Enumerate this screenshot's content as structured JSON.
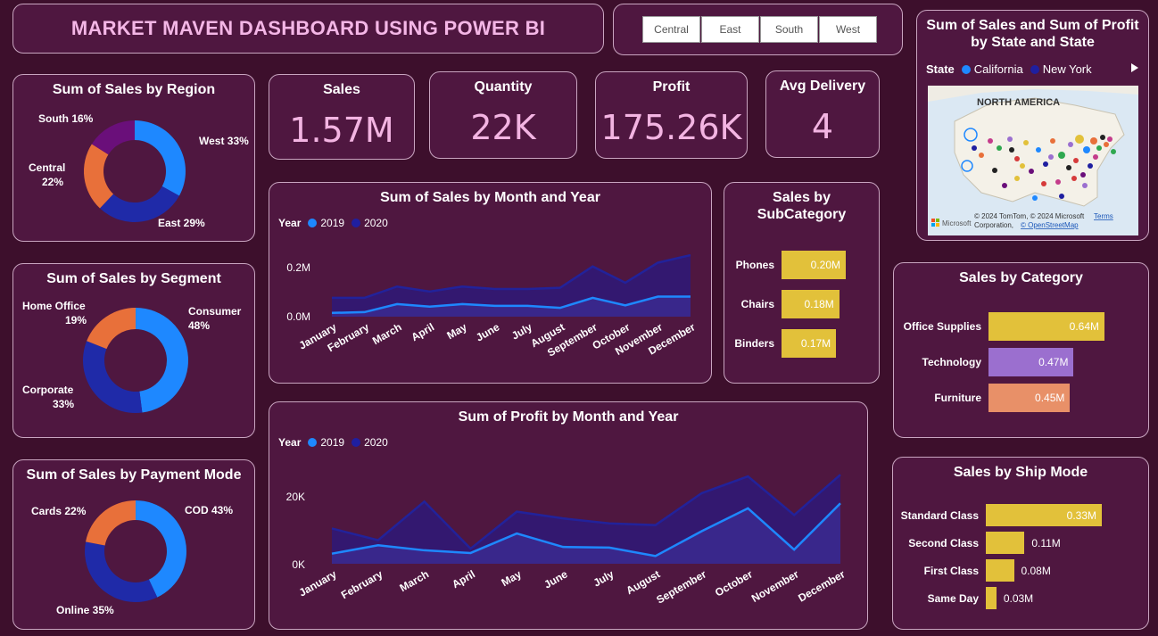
{
  "title": "MARKET MAVEN DASHBOARD USING POWER BI",
  "slicer": {
    "regions": [
      "Central",
      "East",
      "South",
      "West"
    ]
  },
  "kpis": [
    {
      "label": "Sales",
      "value": "1.57M"
    },
    {
      "label": "Quantity",
      "value": "22K"
    },
    {
      "label": "Profit",
      "value": "175.26K"
    },
    {
      "label": "Avg Delivery",
      "value": "4"
    }
  ],
  "region_donut": {
    "title": "Sum of Sales by Region",
    "labels": [
      "West 33%",
      "East 29%",
      "Central",
      "22%",
      "South 16%"
    ]
  },
  "segment_donut": {
    "title": "Sum of Sales by Segment",
    "labels": [
      "Consumer",
      "48%",
      "Corporate",
      "33%",
      "Home Office",
      "19%"
    ]
  },
  "payment_donut": {
    "title": "Sum of Sales by Payment Mode",
    "labels": [
      "COD 43%",
      "Online 35%",
      "Cards 22%"
    ]
  },
  "sales_month": {
    "title": "Sum of Sales by Month and Year",
    "legend_title": "Year",
    "legend": [
      "2019",
      "2020"
    ],
    "y_ticks": [
      "0.2M",
      "0.0M"
    ]
  },
  "profit_month": {
    "title": "Sum of Profit by Month and Year",
    "legend_title": "Year",
    "legend": [
      "2019",
      "2020"
    ],
    "y_ticks": [
      "20K",
      "0K"
    ]
  },
  "subcategory": {
    "title_line1": "Sales by",
    "title_line2": "SubCategory"
  },
  "category": {
    "title": "Sales by Category"
  },
  "shipmode": {
    "title": "Sales by Ship Mode"
  },
  "map": {
    "title_line1": "Sum of Sales and Sum of Profit",
    "title_line2": "by State and State",
    "legend_title": "State",
    "legend": [
      "California",
      "New York"
    ],
    "region_label": "NORTH AMERICA",
    "attribution_1": "© 2024 TomTom, © 2024 Microsoft",
    "attribution_2": "Corporation,",
    "attribution_link": "© OpenStreetMap",
    "terms": "Terms",
    "brand": "Microsoft"
  },
  "colors": {
    "bg": "#3d0f2c",
    "card": "#4f1740",
    "kpi_value": "#f3b4e2",
    "blue_2019": "#1e88ff",
    "navy_2020": "#1f1fa0",
    "orange": "#e8703a",
    "purple": "#6a0f7a",
    "yellow": "#e2c13a",
    "lavender": "#9b6fcf",
    "salmon": "#e89068"
  },
  "chart_data": [
    {
      "type": "pie",
      "title": "Sum of Sales by Region",
      "categories": [
        "West",
        "East",
        "Central",
        "South"
      ],
      "values": [
        33,
        29,
        22,
        16
      ],
      "colors": [
        "#1e88ff",
        "#1f2aa8",
        "#e8703a",
        "#6a0f7a"
      ]
    },
    {
      "type": "pie",
      "title": "Sum of Sales by Segment",
      "categories": [
        "Consumer",
        "Corporate",
        "Home Office"
      ],
      "values": [
        48,
        33,
        19
      ],
      "colors": [
        "#1e88ff",
        "#1f2aa8",
        "#e8703a"
      ]
    },
    {
      "type": "pie",
      "title": "Sum of Sales by Payment Mode",
      "categories": [
        "COD",
        "Online",
        "Cards"
      ],
      "values": [
        43,
        35,
        22
      ],
      "colors": [
        "#1e88ff",
        "#1f2aa8",
        "#e8703a"
      ]
    },
    {
      "type": "area",
      "title": "Sum of Sales by Month and Year",
      "categories": [
        "January",
        "February",
        "March",
        "April",
        "May",
        "June",
        "July",
        "August",
        "September",
        "October",
        "November",
        "December"
      ],
      "series": [
        {
          "name": "2019",
          "values": [
            0.015,
            0.018,
            0.05,
            0.04,
            0.05,
            0.043,
            0.043,
            0.035,
            0.075,
            0.045,
            0.08,
            0.08
          ]
        },
        {
          "name": "2020",
          "values": [
            0.075,
            0.075,
            0.12,
            0.1,
            0.12,
            0.11,
            0.11,
            0.115,
            0.2,
            0.135,
            0.215,
            0.245
          ]
        }
      ],
      "ylim": [
        0,
        0.27
      ]
    },
    {
      "type": "area",
      "title": "Sum of Profit by Month and Year",
      "categories": [
        "January",
        "February",
        "March",
        "April",
        "May",
        "June",
        "July",
        "August",
        "September",
        "October",
        "November",
        "December"
      ],
      "series": [
        {
          "name": "2019",
          "values": [
            3000,
            5500,
            4000,
            3200,
            9000,
            5000,
            4800,
            2300,
            9700,
            16500,
            4200,
            18000
          ]
        },
        {
          "name": "2020",
          "values": [
            10500,
            7000,
            18500,
            4500,
            15500,
            13500,
            12000,
            11500,
            21000,
            26000,
            14500,
            26500
          ]
        }
      ],
      "ylim": [
        0,
        30000
      ]
    },
    {
      "type": "bar",
      "title": "Sales by SubCategory",
      "categories": [
        "Phones",
        "Chairs",
        "Binders"
      ],
      "values": [
        0.2,
        0.18,
        0.17
      ],
      "labels": [
        "0.20M",
        "0.18M",
        "0.17M"
      ],
      "colors": [
        "#e2c13a",
        "#e2c13a",
        "#e2c13a"
      ]
    },
    {
      "type": "bar",
      "title": "Sales by Category",
      "categories": [
        "Office Supplies",
        "Technology",
        "Furniture"
      ],
      "values": [
        0.64,
        0.47,
        0.45
      ],
      "labels": [
        "0.64M",
        "0.47M",
        "0.45M"
      ],
      "colors": [
        "#e2c13a",
        "#9b6fcf",
        "#e89068"
      ]
    },
    {
      "type": "bar",
      "title": "Sales by Ship Mode",
      "categories": [
        "Standard Class",
        "Second Class",
        "First Class",
        "Same Day"
      ],
      "values": [
        0.33,
        0.11,
        0.08,
        0.03
      ],
      "labels": [
        "0.33M",
        "0.11M",
        "0.08M",
        "0.03M"
      ],
      "colors": [
        "#e2c13a",
        "#e2c13a",
        "#e2c13a",
        "#e2c13a"
      ]
    }
  ]
}
